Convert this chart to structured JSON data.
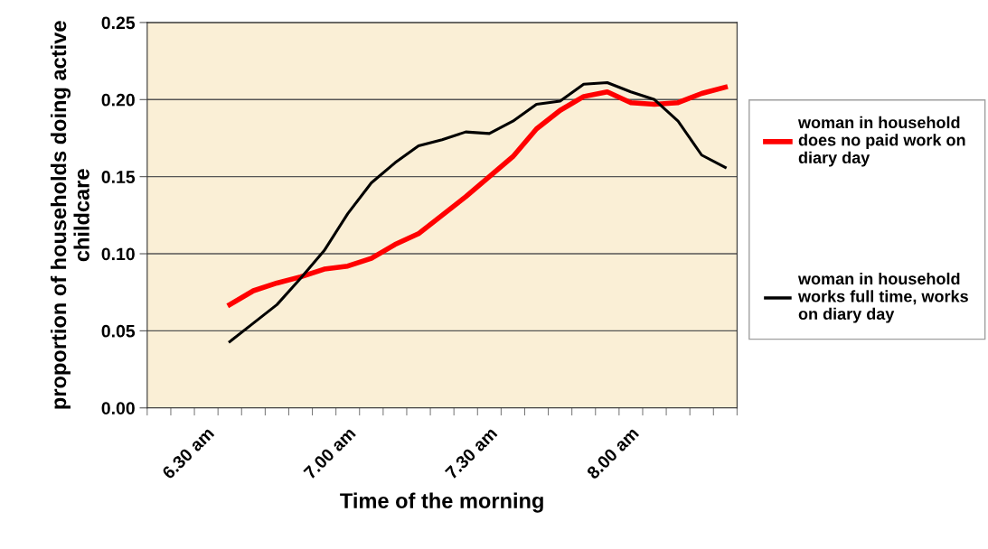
{
  "chart_data": {
    "type": "line",
    "xlabel": "Time of the morning",
    "ylabel": "proportion of households doing active childcare",
    "categories": [
      null,
      null,
      "6.30 am",
      null,
      null,
      null,
      null,
      null,
      "7.00 am",
      null,
      null,
      null,
      null,
      null,
      "7.30 am",
      null,
      null,
      null,
      null,
      null,
      "8.00 am",
      null,
      null,
      null,
      null
    ],
    "series": [
      {
        "name": "woman in household does no paid work on diary day",
        "color": "#ff0000",
        "values": [
          null,
          null,
          null,
          0.067,
          0.076,
          0.081,
          0.085,
          0.09,
          0.092,
          0.097,
          0.106,
          0.113,
          0.125,
          0.137,
          0.15,
          0.163,
          0.181,
          0.193,
          0.202,
          0.205,
          0.198,
          0.197,
          0.198,
          0.204,
          0.208
        ]
      },
      {
        "name": "woman in household works full time, works on diary day",
        "color": "#000000",
        "values": [
          null,
          null,
          null,
          0.043,
          0.055,
          0.067,
          0.084,
          0.102,
          0.126,
          0.146,
          0.159,
          0.17,
          0.174,
          0.179,
          0.178,
          0.186,
          0.197,
          0.199,
          0.21,
          0.211,
          0.205,
          0.2,
          0.186,
          0.164,
          0.156
        ]
      }
    ],
    "ylim": [
      0,
      0.25
    ],
    "yticks": [
      {
        "value": 0,
        "label": "0.00"
      },
      {
        "value": 0.05,
        "label": "0.05"
      },
      {
        "value": 0.1,
        "label": "0.10"
      },
      {
        "value": 0.15,
        "label": "0.15"
      },
      {
        "value": 0.2,
        "label": "0.20"
      },
      {
        "value": 0.25,
        "label": "0.25"
      }
    ],
    "grid": "y",
    "legend": "right",
    "marker": "none",
    "line_style": "solid"
  }
}
